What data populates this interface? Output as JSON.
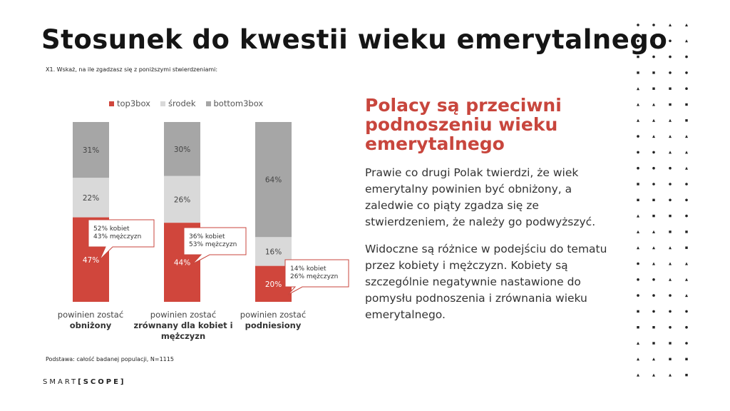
{
  "title": "Stosunek do kwestii wieku emerytalnego",
  "question": "X1. Wskaż, na ile zgadzasz się z poniższymi stwierdzeniami:",
  "base_note": "Podstawa: całość badanej populacji, N=1115",
  "logo": {
    "left": "SMART",
    "right": "[SCOPE]"
  },
  "headline": "Polacy są przeciwni podnoszeniu wieku emerytalnego",
  "paragraphs": [
    "Prawie co drugi Polak twierdzi, że wiek emerytalny powinien być obniżony, a zaledwie co piąty zgadza się ze stwierdzeniem, że należy go podwyższyć.",
    "Widoczne są różnice w podejściu do tematu przez kobiety i mężczyzn. Kobiety są szczególnie negatywnie nastawione do pomysłu podnoszenia i zrównania wieku emerytalnego."
  ],
  "chart_data": {
    "type": "bar",
    "stacked": true,
    "unit": "%",
    "legend_position": "top",
    "categories": [
      {
        "line1": "powinien zostać",
        "bold": "obniżony"
      },
      {
        "line1": "powinien zostać",
        "bold": "zrównany dla kobiet i mężczyzn"
      },
      {
        "line1": "powinien zostać",
        "bold": "podniesiony"
      }
    ],
    "series": [
      {
        "name": "top3box",
        "color": "#d0463c",
        "values": [
          47,
          44,
          20
        ]
      },
      {
        "name": "środek",
        "color": "#d9d9d9",
        "values": [
          22,
          26,
          16
        ]
      },
      {
        "name": "bottom3box",
        "color": "#a6a6a6",
        "values": [
          31,
          30,
          64
        ]
      }
    ],
    "labels": [
      [
        "47%",
        "44%",
        "20%"
      ],
      [
        "22%",
        "26%",
        "16%"
      ],
      [
        "31%",
        "30%",
        "64%"
      ]
    ],
    "callouts": [
      [
        "52% kobiet",
        "43% mężczyzn"
      ],
      [
        "36% kobiet",
        "53% mężczyzn"
      ],
      [
        "14% kobiet",
        "26% mężczyzn"
      ]
    ]
  },
  "colors": {
    "accent": "#c8463d"
  }
}
